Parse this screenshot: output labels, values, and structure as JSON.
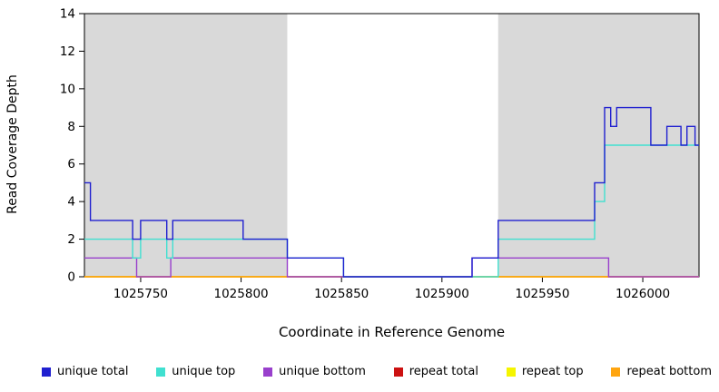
{
  "chart_data": {
    "type": "line",
    "subtype": "step-coverage-plot",
    "title": "",
    "xlabel": "Coordinate in Reference Genome",
    "ylabel": "Read Coverage Depth",
    "xlim": [
      1025722,
      1026028
    ],
    "ylim": [
      0,
      14
    ],
    "x_ticks": [
      1025750,
      1025800,
      1025850,
      1025900,
      1025950,
      1026000
    ],
    "y_ticks": [
      0,
      2,
      4,
      6,
      8,
      10,
      12,
      14
    ],
    "grid": false,
    "legend_position": "bottom",
    "shaded_regions": [
      {
        "from": 1025722,
        "to": 1025823,
        "color": "#d9d9d9"
      },
      {
        "from": 1025928,
        "to": 1026028,
        "color": "#d9d9d9"
      }
    ],
    "series": [
      {
        "name": "unique total",
        "color": "#2020d0",
        "steps": [
          [
            1025722,
            5
          ],
          [
            1025725,
            3
          ],
          [
            1025746,
            2
          ],
          [
            1025750,
            3
          ],
          [
            1025763,
            2
          ],
          [
            1025766,
            3
          ],
          [
            1025801,
            2
          ],
          [
            1025823,
            1
          ],
          [
            1025851,
            0
          ],
          [
            1025915,
            1
          ],
          [
            1025928,
            3
          ],
          [
            1025976,
            5
          ],
          [
            1025981,
            9
          ],
          [
            1025984,
            8
          ],
          [
            1025987,
            9
          ],
          [
            1026004,
            7
          ],
          [
            1026012,
            8
          ],
          [
            1026019,
            7
          ],
          [
            1026022,
            8
          ],
          [
            1026026,
            7
          ]
        ]
      },
      {
        "name": "unique top",
        "color": "#40e0d0",
        "steps": [
          [
            1025722,
            2
          ],
          [
            1025746,
            1
          ],
          [
            1025750,
            2
          ],
          [
            1025763,
            1
          ],
          [
            1025766,
            2
          ],
          [
            1025823,
            1
          ],
          [
            1025851,
            0
          ],
          [
            1025928,
            2
          ],
          [
            1025976,
            4
          ],
          [
            1025981,
            7
          ]
        ]
      },
      {
        "name": "unique bottom",
        "color": "#9940cc",
        "steps": [
          [
            1025722,
            1
          ],
          [
            1025748,
            0
          ],
          [
            1025765,
            1
          ],
          [
            1025823,
            0
          ],
          [
            1025915,
            1
          ],
          [
            1025983,
            0
          ]
        ]
      },
      {
        "name": "repeat total",
        "color": "#cc1111",
        "steps": [
          [
            1025722,
            0
          ]
        ]
      },
      {
        "name": "repeat top",
        "color": "#f5f500",
        "steps": [
          [
            1025722,
            0
          ]
        ]
      },
      {
        "name": "repeat bottom",
        "color": "#ffa510",
        "steps": [
          [
            1025722,
            0
          ]
        ]
      }
    ],
    "draw_order": [
      "repeat total",
      "repeat top",
      "repeat bottom",
      "unique bottom",
      "unique top",
      "unique total"
    ]
  }
}
